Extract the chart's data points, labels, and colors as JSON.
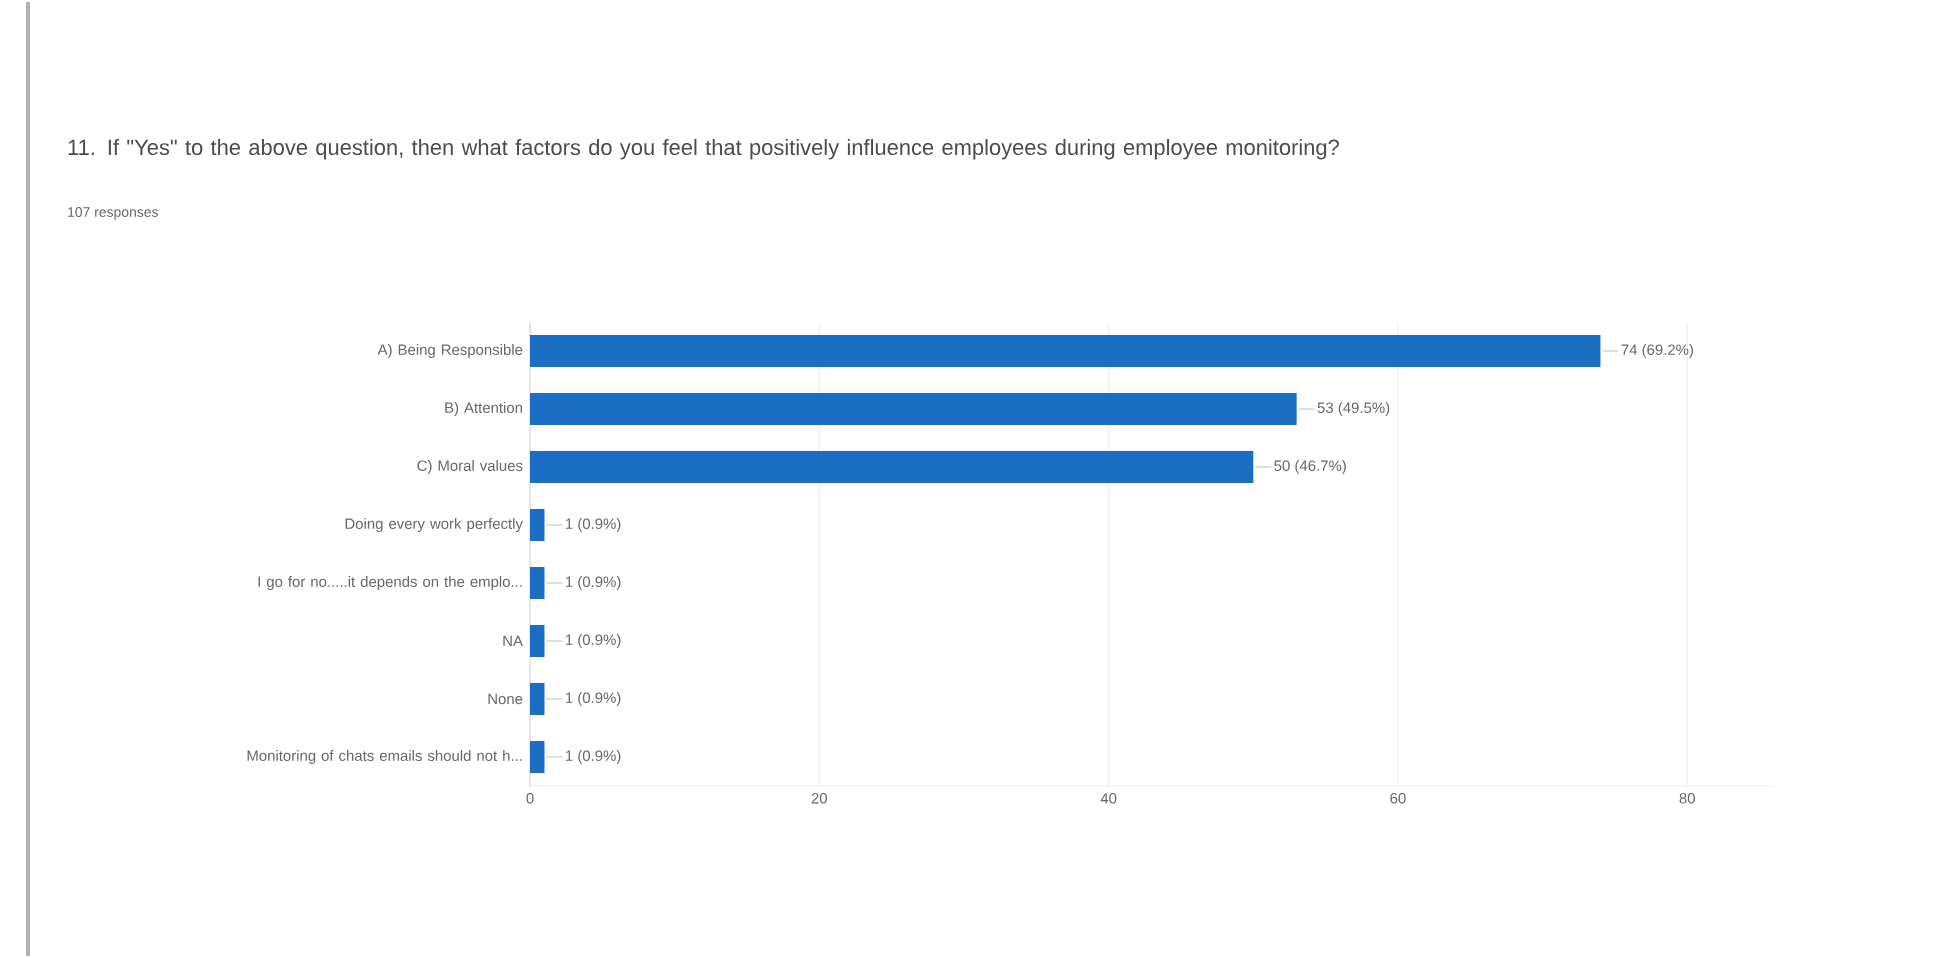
{
  "chart_data": {
    "type": "bar",
    "orientation": "horizontal",
    "title": "11. If \"Yes\" to the above question, then what factors do you feel that positively influence employees during employee monitoring?",
    "subtitle": "107 responses",
    "categories": [
      "A) Being Responsible",
      "B) Attention",
      "C) Moral values",
      "Doing every work perfectly",
      "I go for no.....it depends on the emplo...",
      "NA",
      "None",
      "Monitoring of chats emails should not h..."
    ],
    "values": [
      74,
      53,
      50,
      1,
      1,
      1,
      1,
      1
    ],
    "value_labels": [
      "74 (69.2%)",
      "53 (49.5%)",
      "50 (46.7%)",
      "1 (0.9%)",
      "1 (0.9%)",
      "1 (0.9%)",
      "1 (0.9%)",
      "1 (0.9%)"
    ],
    "color": "#1c6dc4",
    "xlim": [
      0,
      86
    ],
    "xticks": [
      0,
      20,
      40,
      60,
      80
    ],
    "grid": "x"
  }
}
